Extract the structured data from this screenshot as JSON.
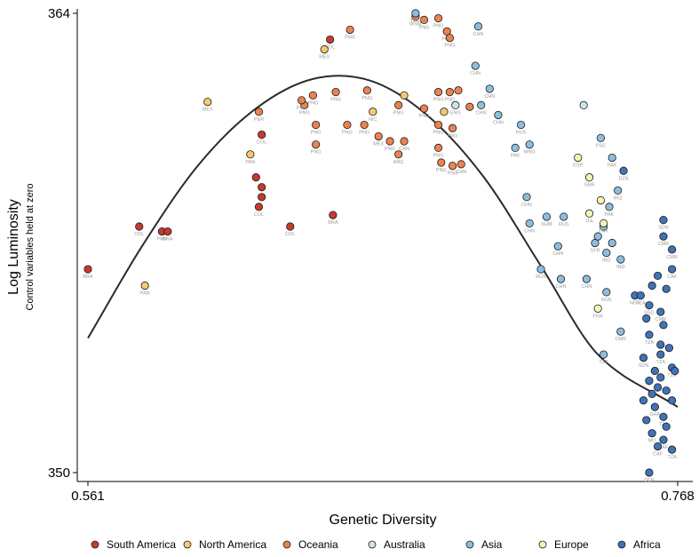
{
  "chart_data": {
    "type": "scatter",
    "xlabel": "Genetic Diversity",
    "ylabel": "Log Luminosity",
    "ylabel_sub": "Control variables held at zero",
    "xlim": [
      0.561,
      0.768
    ],
    "ylim": [
      350,
      364
    ],
    "x_ticks": [
      "0.561",
      "0.768"
    ],
    "y_ticks": [
      "364",
      "350"
    ],
    "grid": false,
    "legend_position": "bottom",
    "fit_curve": {
      "type": "quadratic",
      "points": [
        [
          0.561,
          354.1
        ],
        [
          0.58,
          356.9
        ],
        [
          0.6,
          359.4
        ],
        [
          0.62,
          361.1
        ],
        [
          0.64,
          362.0
        ],
        [
          0.66,
          361.95
        ],
        [
          0.68,
          360.9
        ],
        [
          0.7,
          359.0
        ],
        [
          0.72,
          356.3
        ],
        [
          0.74,
          353.6
        ],
        [
          0.768,
          352.0
        ]
      ]
    },
    "series": [
      {
        "name": "South America",
        "color": "#c63a2e",
        "points": [
          {
            "x": 0.561,
            "y": 356.2,
            "label": "BRA"
          },
          {
            "x": 0.579,
            "y": 357.5,
            "label": "COL"
          },
          {
            "x": 0.587,
            "y": 357.35,
            "label": "PAN"
          },
          {
            "x": 0.589,
            "y": 357.35,
            "label": "BRA"
          },
          {
            "x": 0.622,
            "y": 360.3,
            "label": "COL"
          },
          {
            "x": 0.62,
            "y": 359.0,
            "label": ""
          },
          {
            "x": 0.622,
            "y": 358.7,
            "label": ""
          },
          {
            "x": 0.622,
            "y": 358.4,
            "label": ""
          },
          {
            "x": 0.621,
            "y": 358.1,
            "label": "COL"
          },
          {
            "x": 0.632,
            "y": 357.5,
            "label": "COL"
          },
          {
            "x": 0.646,
            "y": 363.2,
            "label": "BOL"
          },
          {
            "x": 0.647,
            "y": 357.85,
            "label": "BRA"
          }
        ]
      },
      {
        "name": "North America",
        "color": "#f5c96e",
        "points": [
          {
            "x": 0.581,
            "y": 355.7,
            "label": "PAN"
          },
          {
            "x": 0.618,
            "y": 359.7,
            "label": "PAN"
          },
          {
            "x": 0.603,
            "y": 361.3,
            "label": "MEX"
          },
          {
            "x": 0.644,
            "y": 362.9,
            "label": "MEX"
          },
          {
            "x": 0.661,
            "y": 361.0,
            "label": "NIC"
          },
          {
            "x": 0.672,
            "y": 361.5,
            "label": ""
          },
          {
            "x": 0.686,
            "y": 361.0,
            "label": ""
          }
        ]
      },
      {
        "name": "Oceania",
        "color": "#ea8350",
        "points": [
          {
            "x": 0.653,
            "y": 363.5,
            "label": "PNG"
          },
          {
            "x": 0.676,
            "y": 363.9,
            "label": "WSM"
          },
          {
            "x": 0.679,
            "y": 363.8,
            "label": "PNG"
          },
          {
            "x": 0.684,
            "y": 363.85,
            "label": "PNG"
          },
          {
            "x": 0.687,
            "y": 363.45,
            "label": "PNG"
          },
          {
            "x": 0.688,
            "y": 363.25,
            "label": "PNG"
          },
          {
            "x": 0.648,
            "y": 361.6,
            "label": "PNG"
          },
          {
            "x": 0.659,
            "y": 361.65,
            "label": "PNG"
          },
          {
            "x": 0.67,
            "y": 361.2,
            "label": "PNG"
          },
          {
            "x": 0.637,
            "y": 361.2,
            "label": "PNG"
          },
          {
            "x": 0.64,
            "y": 361.5,
            "label": "PNG"
          },
          {
            "x": 0.641,
            "y": 360.6,
            "label": "PNG"
          },
          {
            "x": 0.652,
            "y": 360.6,
            "label": "PNG"
          },
          {
            "x": 0.641,
            "y": 360.0,
            "label": "PNG"
          },
          {
            "x": 0.658,
            "y": 360.6,
            "label": "PNG"
          },
          {
            "x": 0.621,
            "y": 361.0,
            "label": "PER"
          },
          {
            "x": 0.636,
            "y": 361.35,
            "label": "PER"
          },
          {
            "x": 0.663,
            "y": 360.25,
            "label": "MEX"
          },
          {
            "x": 0.667,
            "y": 360.1,
            "label": "PNG"
          },
          {
            "x": 0.672,
            "y": 360.1,
            "label": "CAN"
          },
          {
            "x": 0.67,
            "y": 359.7,
            "label": "ARG"
          },
          {
            "x": 0.679,
            "y": 361.1,
            "label": "PNG"
          },
          {
            "x": 0.684,
            "y": 360.6,
            "label": "PNG"
          },
          {
            "x": 0.684,
            "y": 361.6,
            "label": "PNG"
          },
          {
            "x": 0.688,
            "y": 361.6,
            "label": "PNG"
          },
          {
            "x": 0.689,
            "y": 360.5,
            "label": "PNG"
          },
          {
            "x": 0.684,
            "y": 359.9,
            "label": "PNG"
          },
          {
            "x": 0.685,
            "y": 359.45,
            "label": "PNG"
          },
          {
            "x": 0.689,
            "y": 359.35,
            "label": "PNG"
          },
          {
            "x": 0.692,
            "y": 359.4,
            "label": "CHN"
          },
          {
            "x": 0.691,
            "y": 361.65,
            "label": ""
          },
          {
            "x": 0.695,
            "y": 361.15,
            "label": ""
          }
        ]
      },
      {
        "name": "Australia",
        "color": "#cfe3ef",
        "points": [
          {
            "x": 0.69,
            "y": 361.2,
            "label": "ENG"
          },
          {
            "x": 0.735,
            "y": 361.2,
            "label": ""
          }
        ]
      },
      {
        "name": "Asia",
        "color": "#8dbedd",
        "points": [
          {
            "x": 0.676,
            "y": 364.0,
            "label": "TWN"
          },
          {
            "x": 0.698,
            "y": 363.6,
            "label": "CHN"
          },
          {
            "x": 0.697,
            "y": 362.4,
            "label": "CHN"
          },
          {
            "x": 0.702,
            "y": 361.7,
            "label": "CHN"
          },
          {
            "x": 0.699,
            "y": 361.2,
            "label": "CHN"
          },
          {
            "x": 0.705,
            "y": 360.9,
            "label": "CHN"
          },
          {
            "x": 0.713,
            "y": 360.6,
            "label": "RUS"
          },
          {
            "x": 0.716,
            "y": 360.0,
            "label": "MNG"
          },
          {
            "x": 0.711,
            "y": 359.9,
            "label": "PAK"
          },
          {
            "x": 0.715,
            "y": 358.4,
            "label": "CHN"
          },
          {
            "x": 0.716,
            "y": 357.6,
            "label": "CHN"
          },
          {
            "x": 0.722,
            "y": 357.8,
            "label": "KHM"
          },
          {
            "x": 0.728,
            "y": 357.8,
            "label": "RUS"
          },
          {
            "x": 0.726,
            "y": 356.9,
            "label": "CHN"
          },
          {
            "x": 0.72,
            "y": 356.2,
            "label": "RUS"
          },
          {
            "x": 0.727,
            "y": 355.9,
            "label": "CHN"
          },
          {
            "x": 0.736,
            "y": 355.9,
            "label": "CHN"
          },
          {
            "x": 0.745,
            "y": 359.6,
            "label": "PAK"
          },
          {
            "x": 0.741,
            "y": 360.2,
            "label": "PSE"
          },
          {
            "x": 0.747,
            "y": 358.6,
            "label": "IRQ"
          },
          {
            "x": 0.744,
            "y": 358.1,
            "label": "PAK"
          },
          {
            "x": 0.739,
            "y": 357.0,
            "label": "SYR"
          },
          {
            "x": 0.743,
            "y": 356.7,
            "label": "IND"
          },
          {
            "x": 0.748,
            "y": 356.5,
            "label": "IND"
          },
          {
            "x": 0.743,
            "y": 355.5,
            "label": "RUS"
          },
          {
            "x": 0.748,
            "y": 354.3,
            "label": "CMR"
          },
          {
            "x": 0.742,
            "y": 353.6,
            "label": "TZA"
          },
          {
            "x": 0.74,
            "y": 357.2,
            "label": ""
          },
          {
            "x": 0.742,
            "y": 357.5,
            "label": ""
          },
          {
            "x": 0.745,
            "y": 357.0,
            "label": ""
          }
        ]
      },
      {
        "name": "Europe",
        "color": "#f7f3b8",
        "points": [
          {
            "x": 0.733,
            "y": 359.6,
            "label": "ESP"
          },
          {
            "x": 0.737,
            "y": 359.0,
            "label": "GBR"
          },
          {
            "x": 0.737,
            "y": 357.9,
            "label": "ITA"
          },
          {
            "x": 0.741,
            "y": 358.3,
            "label": ""
          },
          {
            "x": 0.742,
            "y": 357.6,
            "label": "PAK"
          },
          {
            "x": 0.74,
            "y": 355.0,
            "label": "FRA"
          }
        ]
      },
      {
        "name": "Africa",
        "color": "#3f73b5",
        "points": [
          {
            "x": 0.749,
            "y": 359.2,
            "label": "DZA"
          },
          {
            "x": 0.763,
            "y": 357.7,
            "label": "SDN"
          },
          {
            "x": 0.763,
            "y": 357.2,
            "label": "CMR"
          },
          {
            "x": 0.766,
            "y": 356.8,
            "label": "CMR"
          },
          {
            "x": 0.766,
            "y": 356.2,
            "label": "CAF"
          },
          {
            "x": 0.753,
            "y": 355.4,
            "label": "NGA"
          },
          {
            "x": 0.755,
            "y": 355.4,
            "label": "TZA"
          },
          {
            "x": 0.758,
            "y": 355.1,
            "label": "SSD"
          },
          {
            "x": 0.762,
            "y": 354.9,
            "label": "CMR"
          },
          {
            "x": 0.758,
            "y": 354.2,
            "label": "TZA"
          },
          {
            "x": 0.756,
            "y": 353.5,
            "label": "SDN"
          },
          {
            "x": 0.762,
            "y": 353.6,
            "label": "TZA"
          },
          {
            "x": 0.766,
            "y": 353.2,
            "label": "TZA"
          },
          {
            "x": 0.76,
            "y": 352.0,
            "label": "GHA"
          },
          {
            "x": 0.763,
            "y": 351.7,
            "label": "TZA"
          },
          {
            "x": 0.759,
            "y": 351.2,
            "label": "MO"
          },
          {
            "x": 0.763,
            "y": 351.0,
            "label": "ZAF"
          },
          {
            "x": 0.761,
            "y": 350.8,
            "label": "CAF"
          },
          {
            "x": 0.766,
            "y": 350.7,
            "label": "TZA"
          },
          {
            "x": 0.758,
            "y": 350.0,
            "label": "SEN"
          },
          {
            "x": 0.757,
            "y": 351.6,
            "label": ""
          },
          {
            "x": 0.759,
            "y": 352.4,
            "label": ""
          },
          {
            "x": 0.761,
            "y": 352.6,
            "label": ""
          },
          {
            "x": 0.762,
            "y": 352.9,
            "label": ""
          },
          {
            "x": 0.764,
            "y": 352.5,
            "label": ""
          },
          {
            "x": 0.76,
            "y": 353.1,
            "label": ""
          },
          {
            "x": 0.763,
            "y": 354.5,
            "label": ""
          },
          {
            "x": 0.765,
            "y": 353.8,
            "label": ""
          },
          {
            "x": 0.757,
            "y": 354.7,
            "label": ""
          },
          {
            "x": 0.759,
            "y": 355.7,
            "label": ""
          },
          {
            "x": 0.761,
            "y": 356.0,
            "label": ""
          },
          {
            "x": 0.764,
            "y": 355.6,
            "label": ""
          },
          {
            "x": 0.762,
            "y": 353.9,
            "label": ""
          },
          {
            "x": 0.766,
            "y": 352.2,
            "label": ""
          },
          {
            "x": 0.758,
            "y": 352.8,
            "label": ""
          },
          {
            "x": 0.756,
            "y": 352.2,
            "label": ""
          },
          {
            "x": 0.764,
            "y": 351.4,
            "label": ""
          },
          {
            "x": 0.767,
            "y": 353.1,
            "label": ""
          }
        ]
      }
    ]
  }
}
